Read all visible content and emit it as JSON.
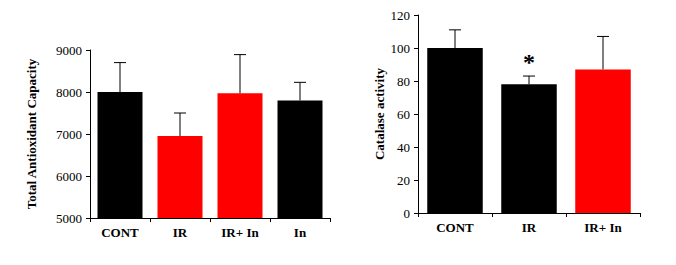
{
  "chart_data": [
    {
      "type": "bar",
      "y_label": "Total Antioxidant Capacity",
      "categories": [
        "CONT",
        "IR",
        "IR+ In",
        "In"
      ],
      "values": [
        8000,
        6950,
        7970,
        7800
      ],
      "errors": [
        700,
        550,
        920,
        430
      ],
      "colors": [
        "#000000",
        "#ff0000",
        "#ff0000",
        "#000000"
      ],
      "ylim": [
        5000,
        9000
      ],
      "yticks": [
        5000,
        6000,
        7000,
        8000,
        9000
      ],
      "grid": false
    },
    {
      "type": "bar",
      "y_label": "Catalase activity",
      "categories": [
        "CONT",
        "IR",
        "IR+ In"
      ],
      "values": [
        100,
        78,
        87
      ],
      "errors": [
        11,
        5,
        20
      ],
      "colors": [
        "#000000",
        "#000000",
        "#ff0000"
      ],
      "ylim": [
        0,
        120
      ],
      "yticks": [
        0,
        20,
        40,
        60,
        80,
        100,
        120
      ],
      "annotations": [
        {
          "text": "*",
          "category": "IR"
        }
      ],
      "grid": false
    }
  ]
}
